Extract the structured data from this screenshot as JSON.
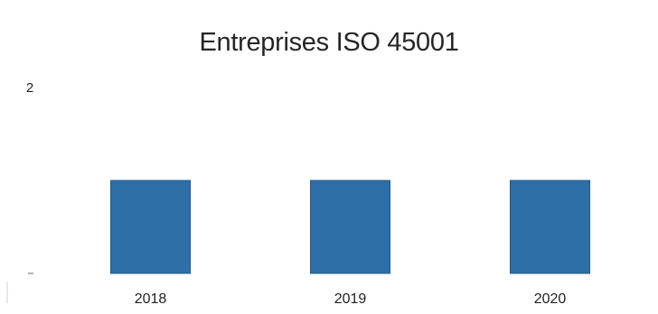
{
  "chart_data": {
    "type": "bar",
    "title": "Entreprises ISO 45001",
    "categories": [
      "2018",
      "2019",
      "2020"
    ],
    "values": [
      1,
      1,
      1
    ],
    "ylim": [
      0,
      2
    ],
    "y_tick_labels": [
      "2"
    ],
    "xlabel": "",
    "ylabel": "",
    "grid": false,
    "legend": "none",
    "bar_color": "#2e6fa7"
  }
}
